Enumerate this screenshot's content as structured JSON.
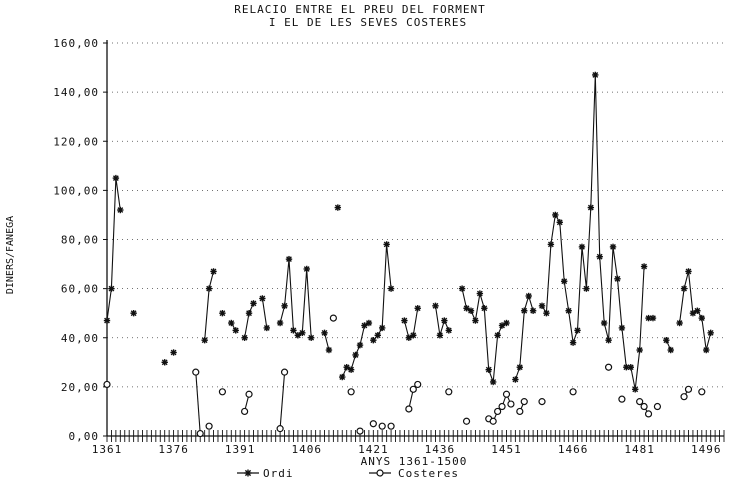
{
  "chart_data": {
    "type": "line",
    "title": "RELACIO ENTRE EL PREU DEL FORMENT",
    "subtitle": "I EL DE LES SEVES COSTERES",
    "xlabel": "ANYS 1361-1500",
    "ylabel": "DINERS/FANEGA",
    "xlim": [
      1361,
      1500
    ],
    "ylim": [
      0,
      160
    ],
    "x_ticks": [
      1361,
      1376,
      1391,
      1406,
      1421,
      1436,
      1451,
      1466,
      1481,
      1496
    ],
    "y_ticks": [
      0,
      20,
      40,
      60,
      80,
      100,
      120,
      140,
      160
    ],
    "y_tick_labels": [
      "0,00",
      "20,00",
      "40,00",
      "60,00",
      "80,00",
      "100,00",
      "120,00",
      "140,00",
      "160,00"
    ],
    "legend_position": "bottom",
    "series": [
      {
        "name": "Ordi",
        "marker": "asterisk",
        "segments": [
          [
            [
              1361,
              47
            ],
            [
              1362,
              60
            ],
            [
              1363,
              105
            ],
            [
              1364,
              92
            ]
          ],
          [
            [
              1367,
              50
            ]
          ],
          [
            [
              1374,
              30
            ]
          ],
          [
            [
              1376,
              34
            ]
          ],
          [
            [
              1383,
              39
            ],
            [
              1384,
              60
            ],
            [
              1385,
              67
            ]
          ],
          [
            [
              1387,
              50
            ]
          ],
          [
            [
              1389,
              46
            ],
            [
              1390,
              43
            ]
          ],
          [
            [
              1392,
              40
            ],
            [
              1393,
              50
            ],
            [
              1394,
              54
            ]
          ],
          [
            [
              1396,
              56
            ],
            [
              1397,
              44
            ]
          ],
          [
            [
              1400,
              46
            ],
            [
              1401,
              53
            ],
            [
              1402,
              72
            ],
            [
              1403,
              43
            ],
            [
              1404,
              41
            ],
            [
              1405,
              42
            ],
            [
              1406,
              68
            ],
            [
              1407,
              40
            ]
          ],
          [
            [
              1410,
              42
            ],
            [
              1411,
              35
            ]
          ],
          [
            [
              1413,
              93
            ]
          ],
          [
            [
              1414,
              24
            ],
            [
              1415,
              28
            ],
            [
              1416,
              27
            ],
            [
              1417,
              33
            ],
            [
              1418,
              37
            ],
            [
              1419,
              45
            ],
            [
              1420,
              46
            ]
          ],
          [
            [
              1421,
              39
            ],
            [
              1422,
              41
            ],
            [
              1423,
              44
            ],
            [
              1424,
              78
            ],
            [
              1425,
              60
            ]
          ],
          [
            [
              1428,
              47
            ],
            [
              1429,
              40
            ],
            [
              1430,
              41
            ],
            [
              1431,
              52
            ]
          ],
          [
            [
              1435,
              53
            ],
            [
              1436,
              41
            ],
            [
              1437,
              47
            ],
            [
              1438,
              43
            ]
          ],
          [
            [
              1441,
              60
            ],
            [
              1442,
              52
            ],
            [
              1443,
              51
            ],
            [
              1444,
              47
            ],
            [
              1445,
              58
            ],
            [
              1446,
              52
            ],
            [
              1447,
              27
            ],
            [
              1448,
              22
            ],
            [
              1449,
              41
            ],
            [
              1450,
              45
            ],
            [
              1451,
              46
            ]
          ],
          [
            [
              1453,
              23
            ],
            [
              1454,
              28
            ],
            [
              1455,
              51
            ],
            [
              1456,
              57
            ],
            [
              1457,
              51
            ]
          ],
          [
            [
              1459,
              53
            ],
            [
              1460,
              50
            ],
            [
              1461,
              78
            ],
            [
              1462,
              90
            ],
            [
              1463,
              87
            ],
            [
              1464,
              63
            ],
            [
              1465,
              51
            ],
            [
              1466,
              38
            ],
            [
              1467,
              43
            ],
            [
              1468,
              77
            ],
            [
              1469,
              60
            ],
            [
              1470,
              93
            ],
            [
              1471,
              147
            ],
            [
              1472,
              73
            ],
            [
              1473,
              46
            ],
            [
              1474,
              39
            ],
            [
              1475,
              77
            ],
            [
              1476,
              64
            ],
            [
              1477,
              44
            ],
            [
              1478,
              28
            ],
            [
              1479,
              28
            ],
            [
              1480,
              19
            ],
            [
              1481,
              35
            ],
            [
              1482,
              69
            ]
          ],
          [
            [
              1483,
              48
            ],
            [
              1484,
              48
            ]
          ],
          [
            [
              1487,
              39
            ],
            [
              1488,
              35
            ]
          ],
          [
            [
              1490,
              46
            ],
            [
              1491,
              60
            ],
            [
              1492,
              67
            ],
            [
              1493,
              50
            ],
            [
              1494,
              51
            ],
            [
              1495,
              48
            ],
            [
              1496,
              35
            ],
            [
              1497,
              42
            ]
          ]
        ]
      },
      {
        "name": "Costeres",
        "marker": "circle",
        "segments": [
          [
            [
              1361,
              21
            ]
          ],
          [
            [
              1381,
              26
            ],
            [
              1382,
              1
            ]
          ],
          [
            [
              1384,
              4
            ]
          ],
          [
            [
              1387,
              18
            ]
          ],
          [
            [
              1392,
              10
            ],
            [
              1393,
              17
            ]
          ],
          [
            [
              1400,
              3
            ],
            [
              1401,
              26
            ]
          ],
          [
            [
              1412,
              48
            ]
          ],
          [
            [
              1416,
              18
            ]
          ],
          [
            [
              1418,
              2
            ]
          ],
          [
            [
              1421,
              5
            ]
          ],
          [
            [
              1423,
              4
            ]
          ],
          [
            [
              1425,
              4
            ]
          ],
          [
            [
              1429,
              11
            ],
            [
              1430,
              19
            ],
            [
              1431,
              21
            ]
          ],
          [
            [
              1438,
              18
            ]
          ],
          [
            [
              1442,
              6
            ]
          ],
          [
            [
              1447,
              7
            ],
            [
              1448,
              6
            ],
            [
              1449,
              10
            ],
            [
              1450,
              12
            ],
            [
              1451,
              17
            ],
            [
              1452,
              13
            ]
          ],
          [
            [
              1454,
              10
            ],
            [
              1455,
              14
            ]
          ],
          [
            [
              1459,
              14
            ]
          ],
          [
            [
              1466,
              18
            ]
          ],
          [
            [
              1474,
              28
            ]
          ],
          [
            [
              1477,
              15
            ]
          ],
          [
            [
              1481,
              14
            ],
            [
              1482,
              12
            ],
            [
              1483,
              9
            ]
          ],
          [
            [
              1485,
              12
            ]
          ],
          [
            [
              1491,
              16
            ],
            [
              1492,
              19
            ]
          ],
          [
            [
              1495,
              18
            ]
          ]
        ]
      }
    ]
  }
}
